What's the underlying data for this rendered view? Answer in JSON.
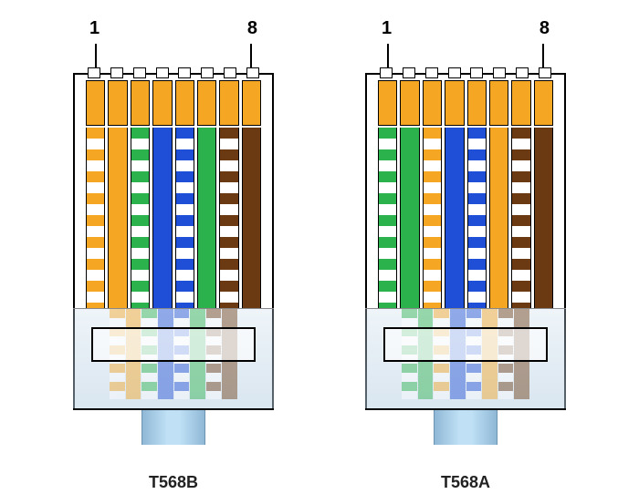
{
  "background_color": "#ffffff",
  "connectors": [
    {
      "key": "t568b",
      "title": "T568B",
      "pin_first": "1",
      "pin_last": "8",
      "contact_color": "#f5a623",
      "cable_color": "#bfe0f5",
      "wires": [
        {
          "type": "striped",
          "color": "#f5a623",
          "stripe": "#ffffff"
        },
        {
          "type": "solid",
          "color": "#f5a623"
        },
        {
          "type": "striped",
          "color": "#2bb24c",
          "stripe": "#ffffff"
        },
        {
          "type": "solid",
          "color": "#1f4fd6"
        },
        {
          "type": "striped",
          "color": "#1f4fd6",
          "stripe": "#ffffff"
        },
        {
          "type": "solid",
          "color": "#2bb24c"
        },
        {
          "type": "striped",
          "color": "#6b3a12",
          "stripe": "#ffffff"
        },
        {
          "type": "solid",
          "color": "#6b3a12"
        }
      ]
    },
    {
      "key": "t568a",
      "title": "T568A",
      "pin_first": "1",
      "pin_last": "8",
      "contact_color": "#f5a623",
      "cable_color": "#bfe0f5",
      "wires": [
        {
          "type": "striped",
          "color": "#2bb24c",
          "stripe": "#ffffff"
        },
        {
          "type": "solid",
          "color": "#2bb24c"
        },
        {
          "type": "striped",
          "color": "#f5a623",
          "stripe": "#ffffff"
        },
        {
          "type": "solid",
          "color": "#1f4fd6"
        },
        {
          "type": "striped",
          "color": "#1f4fd6",
          "stripe": "#ffffff"
        },
        {
          "type": "solid",
          "color": "#f5a623"
        },
        {
          "type": "striped",
          "color": "#6b3a12",
          "stripe": "#ffffff"
        },
        {
          "type": "solid",
          "color": "#6b3a12"
        }
      ]
    }
  ],
  "style": {
    "title_fontsize": 18,
    "pin_label_fontsize": 20,
    "outline_color": "#000000"
  }
}
